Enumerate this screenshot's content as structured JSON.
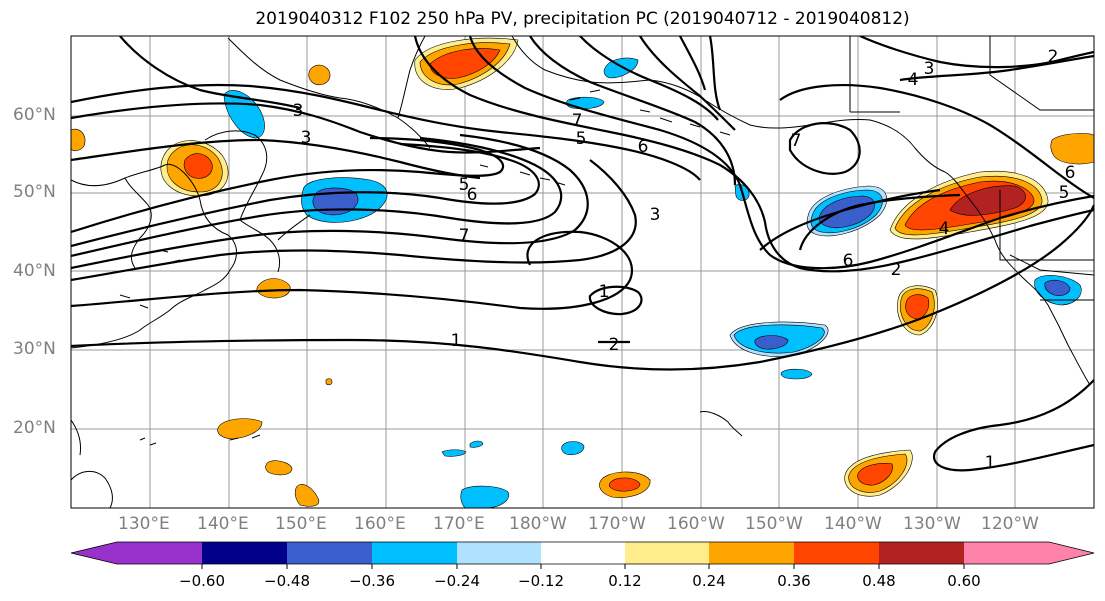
{
  "title": "2019040312 F102 250 hPa PV, precipitation PC (2019040712 - 2019040812)",
  "map": {
    "lat_labels": [
      "60°N",
      "50°N",
      "40°N",
      "30°N",
      "20°N"
    ],
    "lon_labels": [
      "130°E",
      "140°E",
      "150°E",
      "160°E",
      "170°E",
      "180°W",
      "170°W",
      "160°W",
      "150°W",
      "140°W",
      "130°W",
      "120°W"
    ],
    "contour_labels": [
      "1",
      "1",
      "1",
      "2",
      "2",
      "3",
      "3",
      "3",
      "4",
      "4",
      "5",
      "5",
      "6",
      "6",
      "6",
      "7",
      "7",
      "7",
      "2",
      "3",
      "5",
      "6"
    ],
    "contour_color": "#000000"
  },
  "colorbar": {
    "ticks": [
      "−0.60",
      "−0.48",
      "−0.36",
      "−0.24",
      "−0.12",
      "0.12",
      "0.24",
      "0.36",
      "0.48",
      "0.60"
    ],
    "colors": [
      "#9932cc",
      "#00008b",
      "#3a5fcd",
      "#00bfff",
      "#b0e2ff",
      "#ffffff",
      "#ffec8b",
      "#ffa500",
      "#ff4500",
      "#b22222",
      "#ff82ab"
    ]
  }
}
